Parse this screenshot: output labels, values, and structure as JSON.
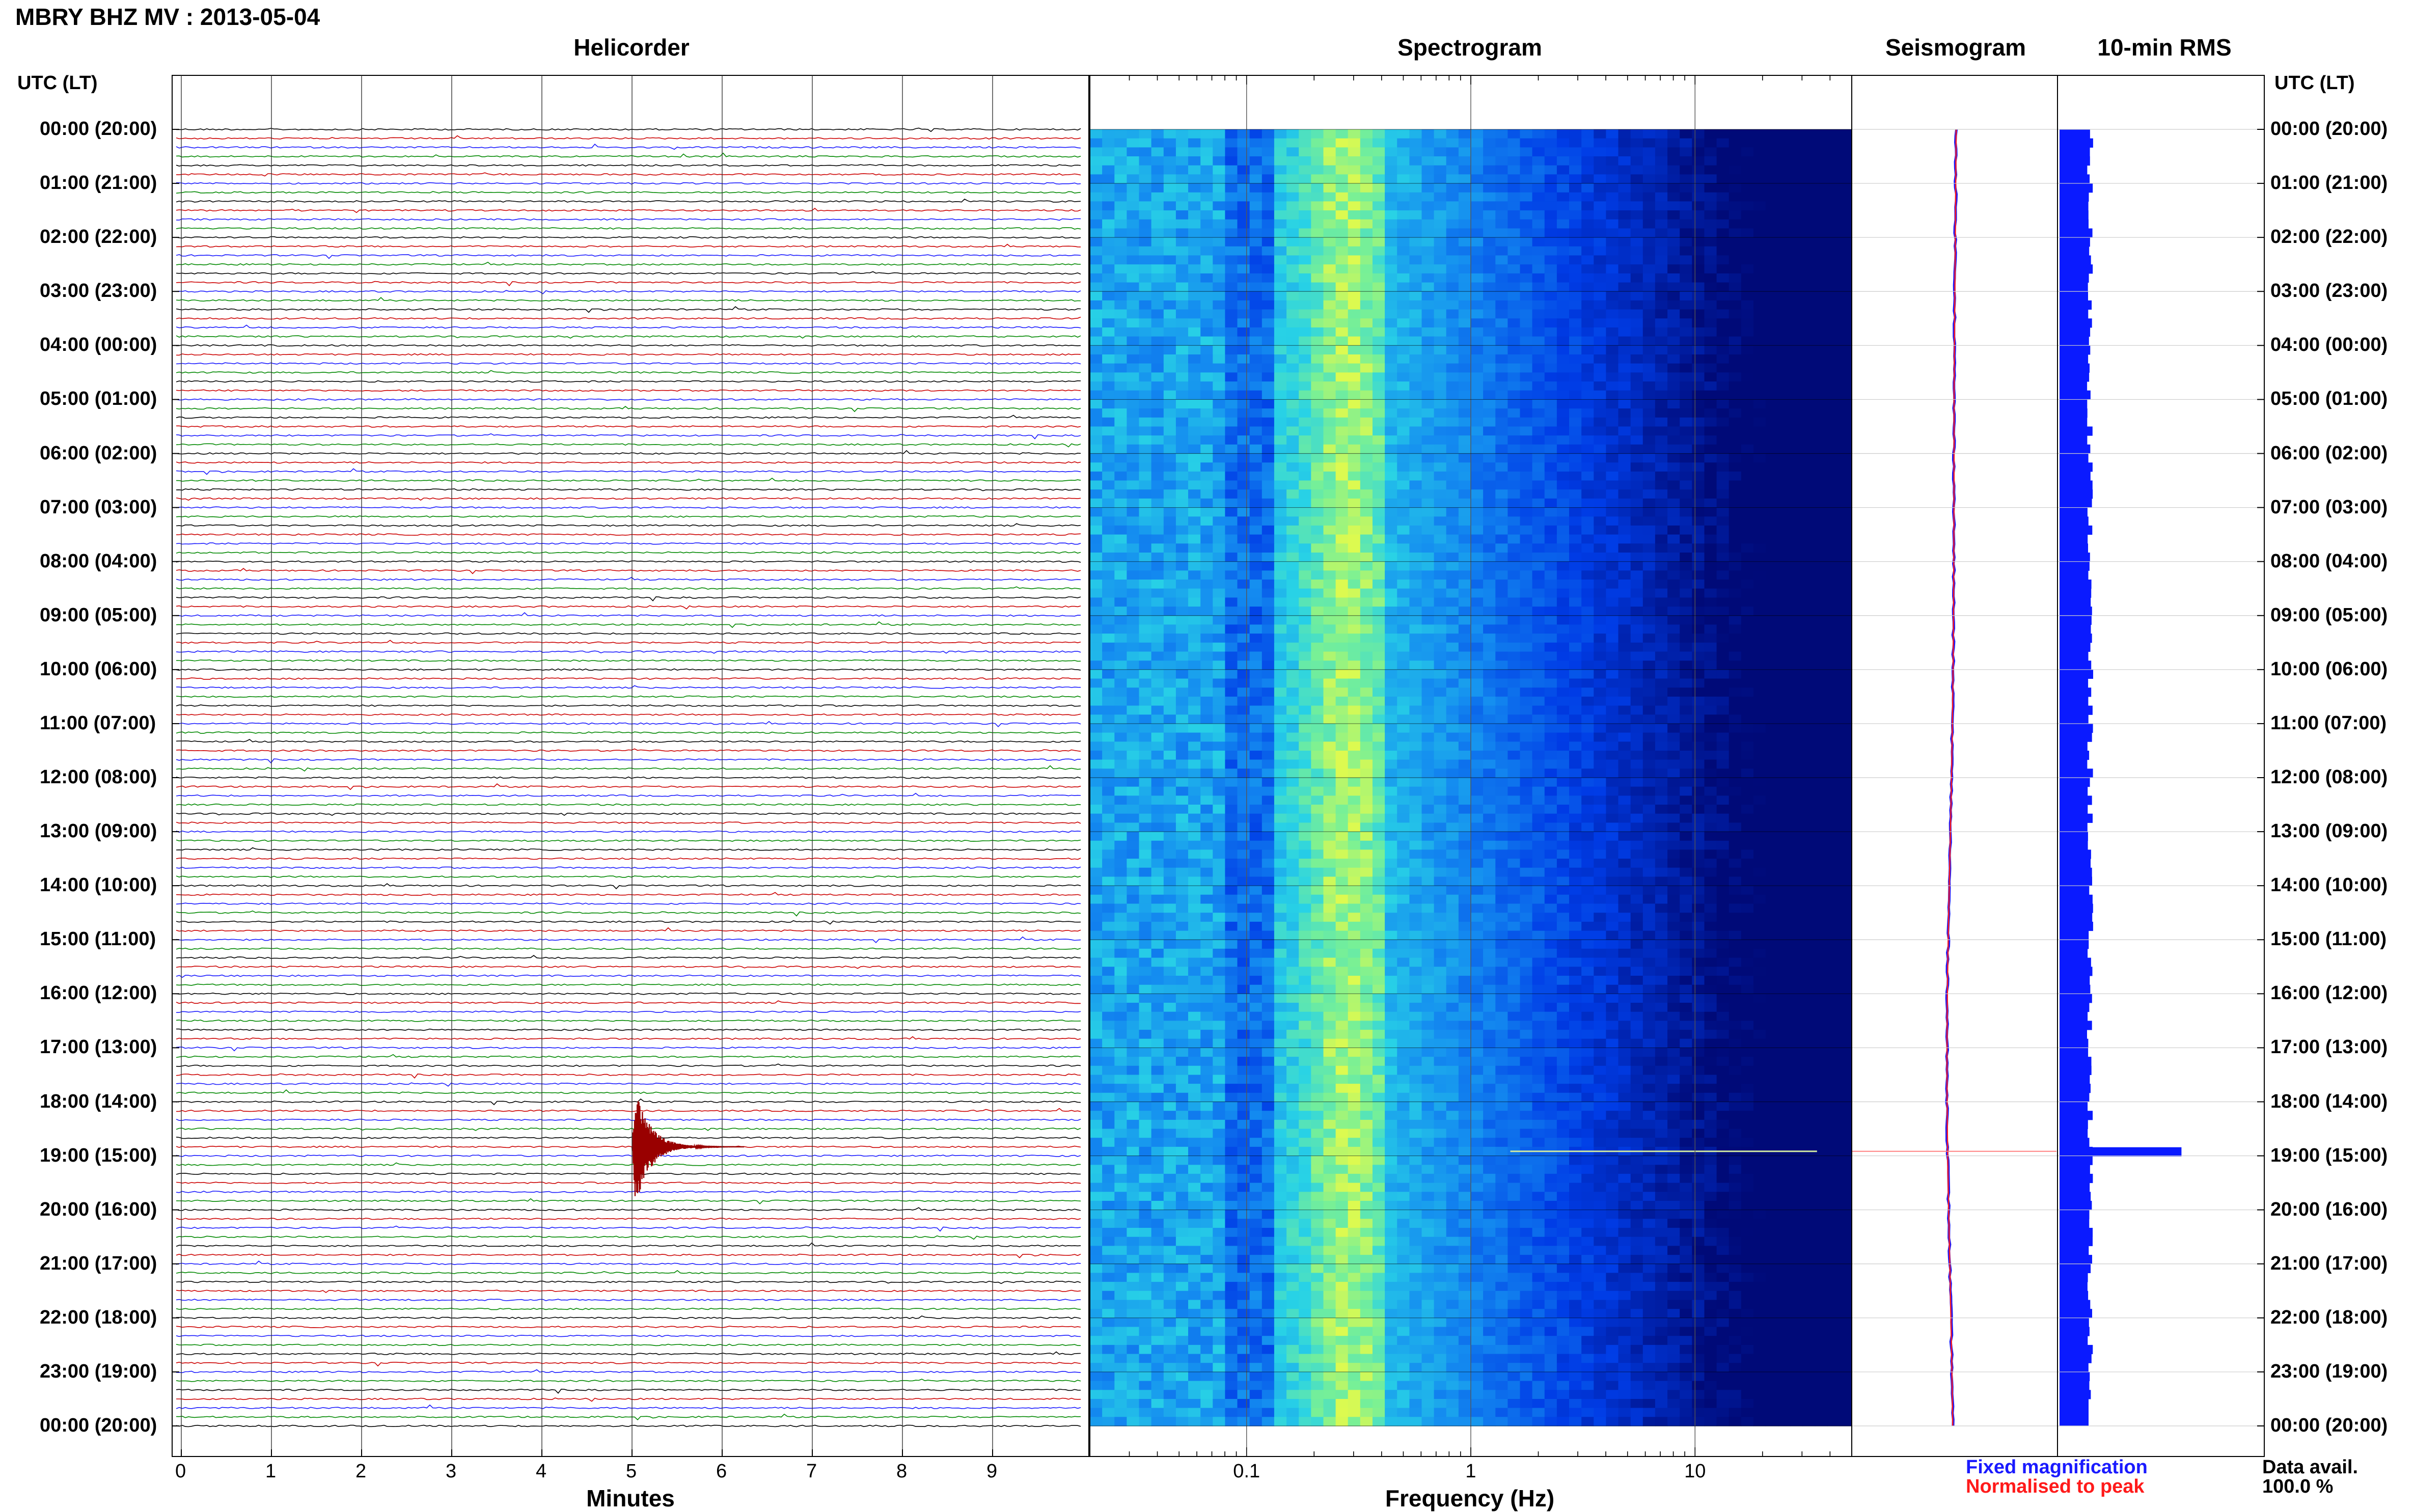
{
  "title": "MBRY BHZ MV : 2013-05-04",
  "panels": {
    "helicorder": "Helicorder",
    "spectrogram": "Spectrogram",
    "seismogram": "Seismogram",
    "rms": "10-min RMS"
  },
  "time_axis_header": "UTC (LT)",
  "time_labels": [
    "00:00 (20:00)",
    "01:00 (21:00)",
    "02:00 (22:00)",
    "03:00 (23:00)",
    "04:00 (00:00)",
    "05:00 (01:00)",
    "06:00 (02:00)",
    "07:00 (03:00)",
    "08:00 (04:00)",
    "09:00 (05:00)",
    "10:00 (06:00)",
    "11:00 (07:00)",
    "12:00 (08:00)",
    "13:00 (09:00)",
    "14:00 (10:00)",
    "15:00 (11:00)",
    "16:00 (12:00)",
    "17:00 (13:00)",
    "18:00 (14:00)",
    "19:00 (15:00)",
    "20:00 (16:00)",
    "21:00 (17:00)",
    "22:00 (18:00)",
    "23:00 (19:00)",
    "00:00 (20:00)"
  ],
  "x_axes": {
    "minutes_label": "Minutes",
    "minutes_ticks": [
      "0",
      "1",
      "2",
      "3",
      "4",
      "5",
      "6",
      "7",
      "8",
      "9"
    ],
    "frequency_label": "Frequency (Hz)",
    "frequency_ticks": [
      "0.1",
      "1",
      "10"
    ]
  },
  "legend": {
    "fixed": "Fixed magnification",
    "normalised": "Normalised to peak",
    "fixed_color": "#1a1aff",
    "normalised_color": "#ff1a1a"
  },
  "data_avail": {
    "label": "Data avail.",
    "value": "100.0 %"
  },
  "trace_colors": [
    "#000000",
    "#cc0000",
    "#1a1aff",
    "#008800"
  ],
  "chart_data": {
    "type": "helicorder",
    "station": "MBRY BHZ MV",
    "date": "2013-05-04",
    "rows_per_hour": 6,
    "minutes_per_row": 10,
    "event": {
      "time_utc": "18:55",
      "minute_in_row": 5.0,
      "note": "large transient"
    },
    "spectrogram": {
      "freq_range_hz": [
        0.02,
        50
      ],
      "scale": "log",
      "peak_band_hz": [
        0.2,
        0.4
      ]
    },
    "rms_10min": {
      "baseline": 1.0,
      "spike_time_utc": "18:55",
      "spike_value": 3.8
    }
  }
}
